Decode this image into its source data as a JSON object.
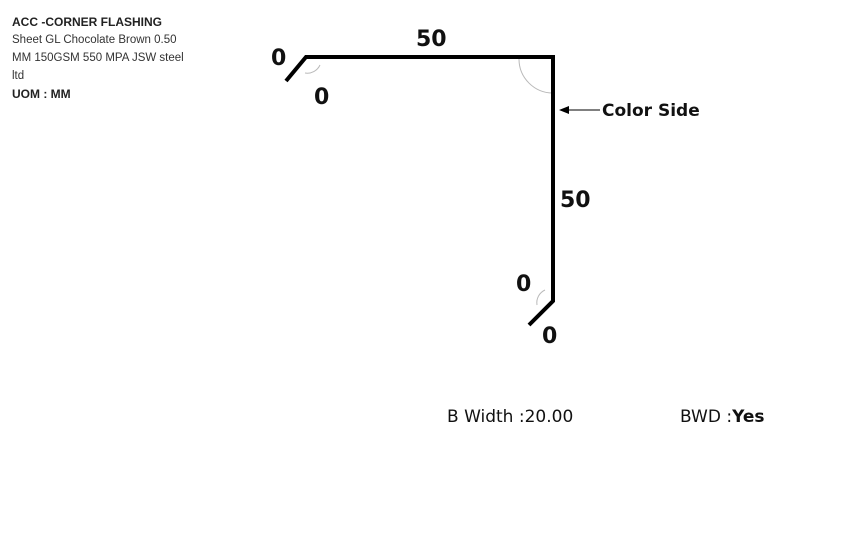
{
  "product": {
    "title": "ACC -CORNER FLASHING",
    "description_lines": [
      "Sheet GL Chocolate Brown 0.50",
      "MM 150GSM 550 MPA JSW steel",
      "ltd"
    ],
    "uom": "UOM : MM"
  },
  "drawing": {
    "top_length": "50",
    "side_length": "50",
    "top_left_hem_length": "0",
    "top_left_hem_angle": "0",
    "bottom_hem_length": "0",
    "bottom_hem_angle": "0",
    "color_side_label": "Color Side"
  },
  "footer": {
    "b_width_label": "B Width :",
    "b_width_value": "20.00",
    "bwd_label": "BWD :",
    "bwd_value": "Yes"
  }
}
